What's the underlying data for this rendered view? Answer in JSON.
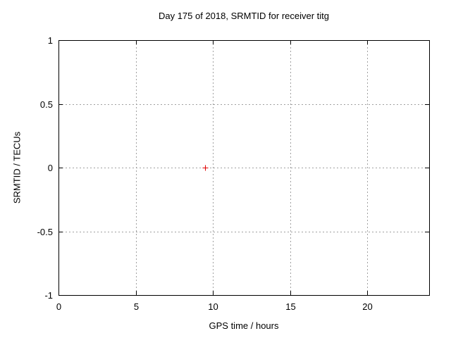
{
  "page": {
    "background_color": "#ffffff",
    "text_color": "#000000"
  },
  "chart_data": {
    "type": "scatter",
    "title": "Day 175 of 2018, SRMTID for receiver titg",
    "xlabel": "GPS time / hours",
    "ylabel": "SRMTID / TECUs",
    "xlim": [
      0,
      24
    ],
    "ylim": [
      -1,
      1
    ],
    "xticks": [
      {
        "v": 0,
        "label": "0"
      },
      {
        "v": 5,
        "label": "5"
      },
      {
        "v": 10,
        "label": "10"
      },
      {
        "v": 15,
        "label": "15"
      },
      {
        "v": 20,
        "label": "20"
      }
    ],
    "yticks": [
      {
        "v": -1,
        "label": "-1"
      },
      {
        "v": -0.5,
        "label": "-0.5"
      },
      {
        "v": 0,
        "label": "0"
      },
      {
        "v": 0.5,
        "label": "0.5"
      },
      {
        "v": 1,
        "label": "1"
      }
    ],
    "grid": true,
    "grid_style": "dotted",
    "legend": "none",
    "colors": {
      "border": "#000000",
      "grid": "#a0a0a0",
      "tick_text": "#000000"
    },
    "series": [
      {
        "name": "srmtid-points",
        "marker": "plus",
        "color": "#e00000",
        "points": [
          [
            9.5,
            0
          ]
        ]
      }
    ]
  }
}
